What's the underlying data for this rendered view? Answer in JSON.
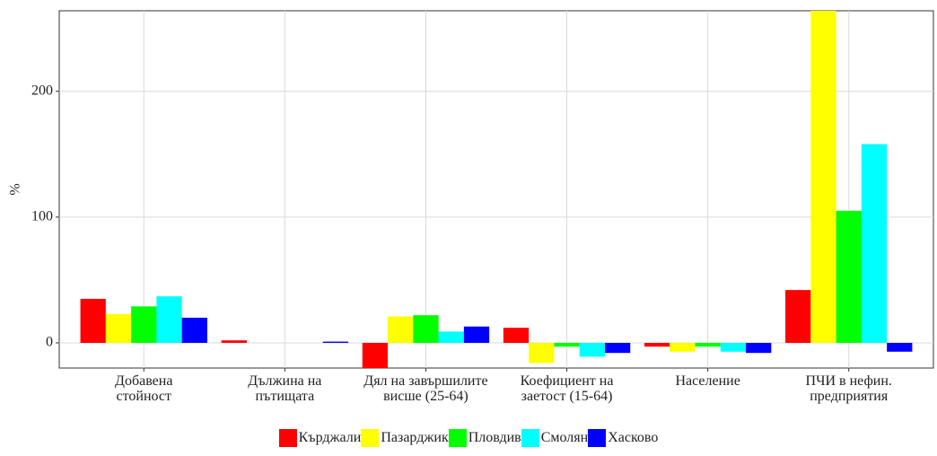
{
  "chart_data": {
    "type": "bar",
    "y_label": "%",
    "categories": [
      "Добавена\nстойност",
      "Дължина на\nпътищата",
      "Дял на завършилите\nвисше (25-64)",
      "Коефициент на\nзаетост (15-64)",
      "Население",
      "ПЧИ в нефин.\nпредприятия"
    ],
    "series": [
      {
        "name": "Кърджали",
        "color": "#ff0000",
        "values": [
          35,
          2,
          -20,
          12,
          -3,
          42
        ]
      },
      {
        "name": "Пазарджик",
        "color": "#ffff00",
        "values": [
          23,
          0,
          21,
          -16,
          -7,
          264
        ]
      },
      {
        "name": "Пловдив",
        "color": "#00ff00",
        "values": [
          29,
          0,
          22,
          -3,
          -3,
          105
        ]
      },
      {
        "name": "Смолян",
        "color": "#00ffff",
        "values": [
          37,
          0,
          9,
          -11,
          -7,
          158
        ]
      },
      {
        "name": "Хасково",
        "color": "#0000ff",
        "values": [
          20,
          1,
          13,
          -8,
          -8,
          -7
        ]
      }
    ],
    "ylim": [
      -20,
      264
    ],
    "yticks": [
      0,
      100,
      200
    ],
    "grid": true,
    "legend": "bottom"
  }
}
